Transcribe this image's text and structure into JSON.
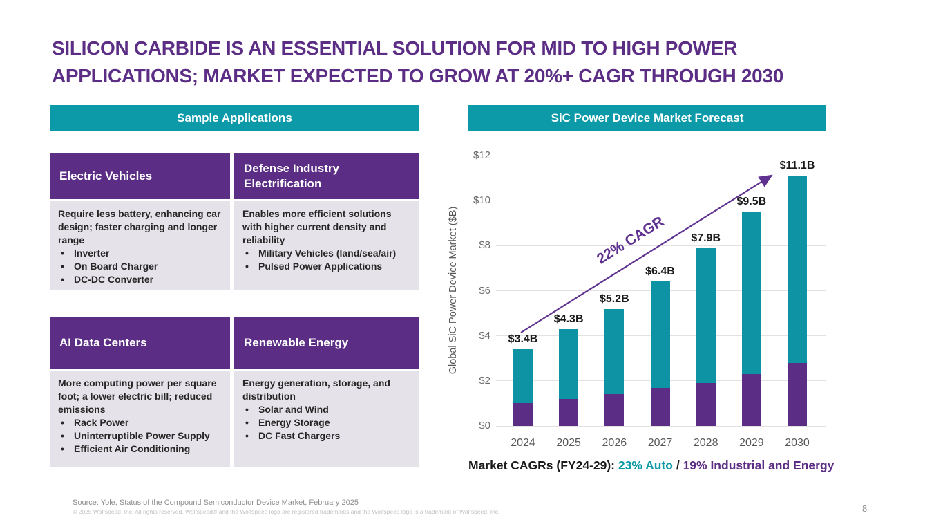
{
  "slide": {
    "title_line1": "SILICON CARBIDE IS AN ESSENTIAL SOLUTION FOR MID TO HIGH POWER",
    "title_line2": "APPLICATIONS; MARKET EXPECTED TO GROW AT 20%+ CAGR THROUGH 2030",
    "page_number": "8"
  },
  "colors": {
    "purple": "#5b2d84",
    "teal_banner": "#0d9aa8",
    "bar_teal": "#0e93a5",
    "bar_purple": "#5b2d84",
    "arrow_purple": "#5f3190",
    "card_body_bg": "#e5e3e9"
  },
  "applications": {
    "header": "Sample Applications",
    "cards": [
      {
        "title": "Electric Vehicles",
        "body": "Require less battery, enhancing car design; faster charging and longer range",
        "bullets": [
          "Inverter",
          "On Board Charger",
          "DC-DC Converter"
        ]
      },
      {
        "title": "Defense Industry Electrification",
        "body": "Enables more efficient solutions with higher current density and reliability",
        "bullets": [
          "Military Vehicles (land/sea/air)",
          "Pulsed Power Applications"
        ]
      },
      {
        "title": "AI Data Centers",
        "body": "More computing power per square foot; a lower electric bill; reduced emissions",
        "bullets": [
          "Rack Power",
          "Uninterruptible Power Supply",
          "Efficient Air Conditioning"
        ]
      },
      {
        "title": "Renewable Energy",
        "body": "Energy generation, storage, and distribution",
        "bullets": [
          "Solar and Wind",
          "Energy Storage",
          "DC Fast Chargers"
        ]
      }
    ]
  },
  "forecast": {
    "header": "SiC Power Device Market Forecast",
    "caption_prefix": "Market CAGRs (FY24-29): ",
    "caption_auto": "23% Auto",
    "caption_separator": " / ",
    "caption_industrial": "19% Industrial and Energy"
  },
  "chart_data": {
    "type": "bar",
    "subtype": "stacked",
    "title": "SiC Power Device Market Forecast",
    "categories": [
      "2024",
      "2025",
      "2026",
      "2027",
      "2028",
      "2029",
      "2030"
    ],
    "series": [
      {
        "name": "Industrial and Energy",
        "color": "#5b2d84",
        "values": [
          1.0,
          1.2,
          1.4,
          1.7,
          1.9,
          2.3,
          2.8
        ]
      },
      {
        "name": "Auto",
        "color": "#0e93a5",
        "values": [
          2.4,
          3.1,
          3.8,
          4.7,
          6.0,
          7.2,
          8.3
        ]
      }
    ],
    "totals": [
      3.4,
      4.3,
      5.2,
      6.4,
      7.9,
      9.5,
      11.1
    ],
    "total_labels": [
      "$3.4B",
      "$4.3B",
      "$5.2B",
      "$6.4B",
      "$7.9B",
      "$9.5B",
      "$11.1B"
    ],
    "annotation": "22% CAGR",
    "ylabel": "Global SiC Power Device Market ($B)",
    "xlabel": "",
    "ylim": [
      0,
      12
    ],
    "yticks": [
      "$0",
      "$2",
      "$4",
      "$6",
      "$8",
      "$10",
      "$12"
    ],
    "grid": "horizontal",
    "legend": "none"
  },
  "footer": {
    "source": "Source: Yole, Status of the Compound Semiconductor Device Market, February 2025",
    "copyright": "© 2025 Wolfspeed, Inc. All rights reserved. Wolfspeed® and the Wolfspeed logo are registered trademarks and the Wolfspeed logo is a trademark of Wolfspeed, Inc."
  }
}
